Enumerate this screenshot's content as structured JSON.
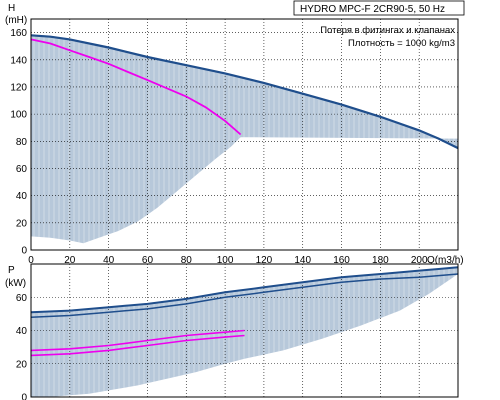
{
  "chart_data": [
    {
      "type": "area",
      "title": "HYDRO MPC-F 2CR90-5, 50 Hz",
      "annotations": [
        "Потеря в фитингах и клапанах",
        "Плотность = 1000 kg/m3"
      ],
      "ylabel_line1": "H",
      "ylabel_line2": "(mH)",
      "xlabel": "Q(m3/h)",
      "xlim": [
        0,
        220
      ],
      "ylim": [
        0,
        170
      ],
      "xticks": [
        "0",
        "20",
        "40",
        "60",
        "80",
        "100",
        "120",
        "140",
        "160",
        "180",
        "200"
      ],
      "yticks": [
        "0",
        "20",
        "40",
        "60",
        "80",
        "100",
        "120",
        "140",
        "160"
      ],
      "grid": true,
      "colors": {
        "curve": "#1f4e8c",
        "pink": "#ee00ee",
        "band": "#b7c8da",
        "grid": "#000000"
      },
      "series": [
        {
          "role": "max-curve",
          "x": [
            0,
            10,
            20,
            40,
            60,
            80,
            100,
            120,
            140,
            160,
            180,
            200,
            210,
            220
          ],
          "y": [
            158,
            157,
            155,
            149,
            142,
            136,
            130,
            123,
            115,
            107,
            98,
            88,
            82,
            75
          ]
        },
        {
          "role": "system-curve",
          "x": [
            0,
            10,
            20,
            30,
            40,
            50,
            60,
            70,
            80,
            90,
            100,
            108
          ],
          "y": [
            155,
            152,
            147,
            142,
            137,
            131,
            125,
            119,
            113,
            105,
            95,
            85
          ]
        },
        {
          "role": "operating-area-lower-bound",
          "x": [
            0,
            10,
            20,
            27,
            35,
            45,
            55,
            65,
            75,
            85,
            95,
            103,
            108,
            220
          ],
          "y": [
            10,
            9,
            7,
            5,
            9,
            14,
            21,
            31,
            43,
            55,
            67,
            76,
            83,
            82
          ]
        }
      ]
    },
    {
      "type": "area",
      "ylabel_line1": "P",
      "ylabel_line2": "(kW)",
      "xlim": [
        0,
        220
      ],
      "ylim": [
        0,
        80
      ],
      "yticks": [
        "0",
        "20",
        "40",
        "60"
      ],
      "grid": true,
      "colors": {
        "curve": "#1f4e8c",
        "pink": "#ee00ee",
        "band": "#b7c8da",
        "grid": "#000000"
      },
      "series": [
        {
          "role": "power-upper",
          "x": [
            0,
            20,
            40,
            60,
            80,
            100,
            120,
            140,
            160,
            180,
            200,
            210,
            220
          ],
          "y": [
            51,
            52,
            54,
            56,
            59,
            63,
            66,
            69,
            72,
            74,
            76,
            77,
            78
          ]
        },
        {
          "role": "power-lower",
          "x": [
            0,
            20,
            40,
            60,
            80,
            100,
            120,
            140,
            160,
            180,
            200,
            210,
            220
          ],
          "y": [
            48,
            49,
            51,
            53,
            56,
            60,
            63,
            66,
            69,
            71,
            72,
            73,
            74
          ]
        },
        {
          "role": "power-pink-upper",
          "x": [
            0,
            20,
            40,
            60,
            80,
            100,
            110
          ],
          "y": [
            28,
            29,
            31,
            34,
            37,
            39,
            40
          ]
        },
        {
          "role": "power-pink-lower",
          "x": [
            0,
            20,
            40,
            60,
            80,
            100,
            110
          ],
          "y": [
            25,
            26,
            28,
            31,
            34,
            36,
            37
          ]
        },
        {
          "role": "band-lower-bound",
          "x": [
            0,
            10,
            20,
            30,
            40,
            55,
            70,
            85,
            100,
            110,
            130,
            150,
            170,
            190,
            205,
            220
          ],
          "y": [
            0,
            0,
            1,
            2,
            4,
            7,
            11,
            15,
            20,
            23,
            28,
            35,
            43,
            52,
            62,
            74
          ]
        }
      ]
    }
  ]
}
